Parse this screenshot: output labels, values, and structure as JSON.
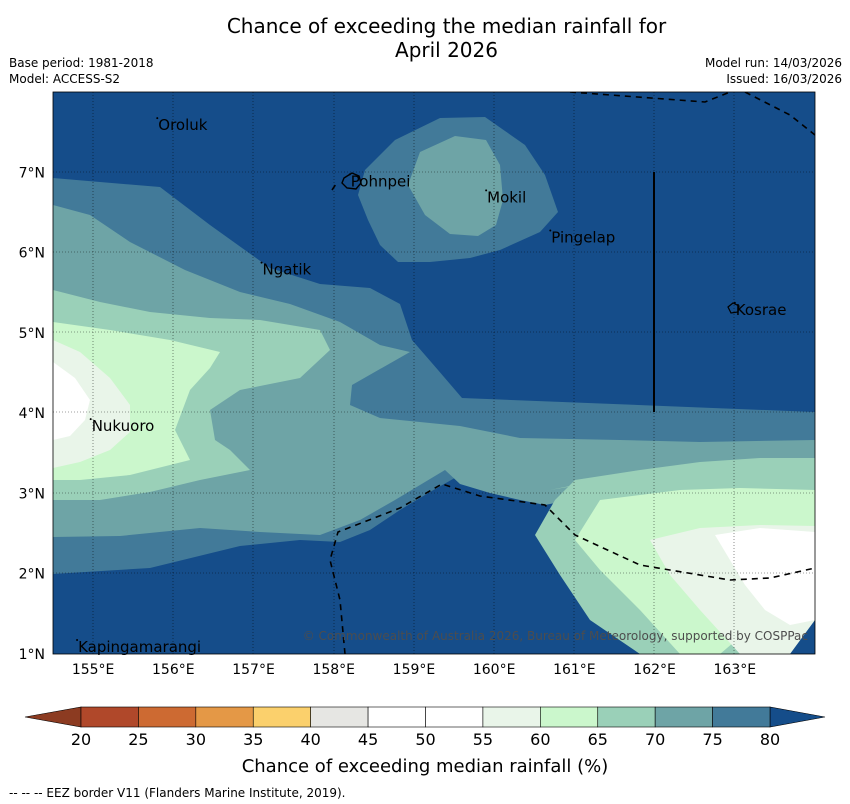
{
  "title": {
    "line1": "Chance of exceeding the median rainfall for",
    "line2": "April 2026"
  },
  "meta": {
    "base_period": "Base period: 1981-2018",
    "model": "Model: ACCESS-S2",
    "model_run": "Model run: 14/03/2026",
    "issued": "Issued: 16/03/2026"
  },
  "axes": {
    "x_ticks": [
      "155°E",
      "156°E",
      "157°E",
      "158°E",
      "159°E",
      "160°E",
      "161°E",
      "162°E",
      "163°E"
    ],
    "y_ticks": [
      "1°N",
      "2°N",
      "3°N",
      "4°N",
      "5°N",
      "6°N",
      "7°N"
    ],
    "lon_range": [
      154.5,
      164.0
    ],
    "lat_range": [
      1.0,
      8.0
    ]
  },
  "places": [
    {
      "name": "Oroluk",
      "lon": 155.8,
      "lat": 7.6
    },
    {
      "name": "Pohnpei",
      "lon": 158.2,
      "lat": 6.9
    },
    {
      "name": "Mokil",
      "lon": 159.9,
      "lat": 6.7
    },
    {
      "name": "Pingelap",
      "lon": 160.7,
      "lat": 6.2
    },
    {
      "name": "Ngatik",
      "lon": 157.1,
      "lat": 5.8
    },
    {
      "name": "Kosrae",
      "lon": 163.0,
      "lat": 5.3
    },
    {
      "name": "Nukuoro",
      "lon": 154.97,
      "lat": 3.85
    },
    {
      "name": "Kapingamarangi",
      "lon": 154.8,
      "lat": 1.1
    }
  ],
  "copyright": "© Commonwealth of Australia 2026, Bureau of Meteorology, supported by COSPPac",
  "colorbar": {
    "label": "Chance of exceeding median rainfall (%)",
    "ticks": [
      "20",
      "25",
      "30",
      "35",
      "40",
      "45",
      "50",
      "55",
      "60",
      "65",
      "70",
      "75",
      "80"
    ],
    "colors": [
      "#b0482a",
      "#cd6a32",
      "#e49846",
      "#fbd06c",
      "#e6e6e3",
      "#ffffff",
      "#ffffff",
      "#e9f5e9",
      "#cbf7cc",
      "#9ad0b8",
      "#6ea4a6",
      "#427a99"
    ],
    "low_extend_color": "#8c3b21",
    "high_extend_color": "#154d8a"
  },
  "footer": "--  --  -- EEZ border V11 (Flanders Marine Institute, 2019)."
}
